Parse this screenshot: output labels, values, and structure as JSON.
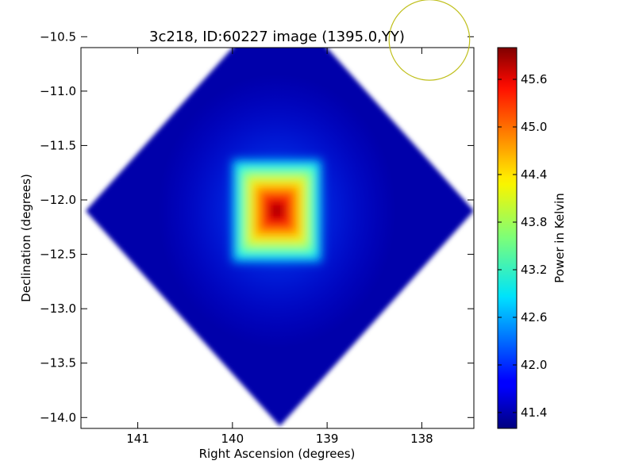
{
  "chart_data": {
    "type": "heatmap",
    "title": "3c218, ID:60227 image (1395.0,YY)",
    "xlabel": "Right Ascension (degrees)",
    "ylabel": "Declination (degrees)",
    "xlim": [
      141.6,
      137.45
    ],
    "ylim": [
      -14.1,
      -10.6
    ],
    "x_ticks": [
      141,
      140,
      139,
      138
    ],
    "x_tick_labels": [
      "141",
      "140",
      "139",
      "138"
    ],
    "y_ticks": [
      -10.5,
      -11.0,
      -11.5,
      -12.0,
      -12.5,
      -13.0,
      -13.5,
      -14.0
    ],
    "y_tick_labels": [
      "−10.5",
      "−11.0",
      "−11.5",
      "−12.0",
      "−12.5",
      "−13.0",
      "−13.5",
      "−14.0"
    ],
    "grid": false,
    "colormap": "jet",
    "footprint": {
      "shape": "diamond",
      "center_ra": 139.5,
      "center_dec": -12.1,
      "half_width_ra": 2.05,
      "half_height_dec": 1.98,
      "background_value": 41.4
    },
    "source": {
      "ra": 139.53,
      "dec": -12.1,
      "peak_value": 45.8,
      "core_half_width_deg": 0.42
    },
    "beam": {
      "ra": 137.92,
      "dec": -10.53,
      "radius_deg": 0.37,
      "color": "#bfbf1a"
    },
    "colorbar": {
      "label": "Power in Kelvin",
      "vmin": 41.2,
      "vmax": 46.0,
      "ticks": [
        41.4,
        42.0,
        42.6,
        43.2,
        43.8,
        44.4,
        45.0,
        45.6
      ],
      "tick_labels": [
        "41.4",
        "42.0",
        "42.6",
        "43.2",
        "43.8",
        "44.4",
        "45.0",
        "45.6"
      ]
    }
  }
}
